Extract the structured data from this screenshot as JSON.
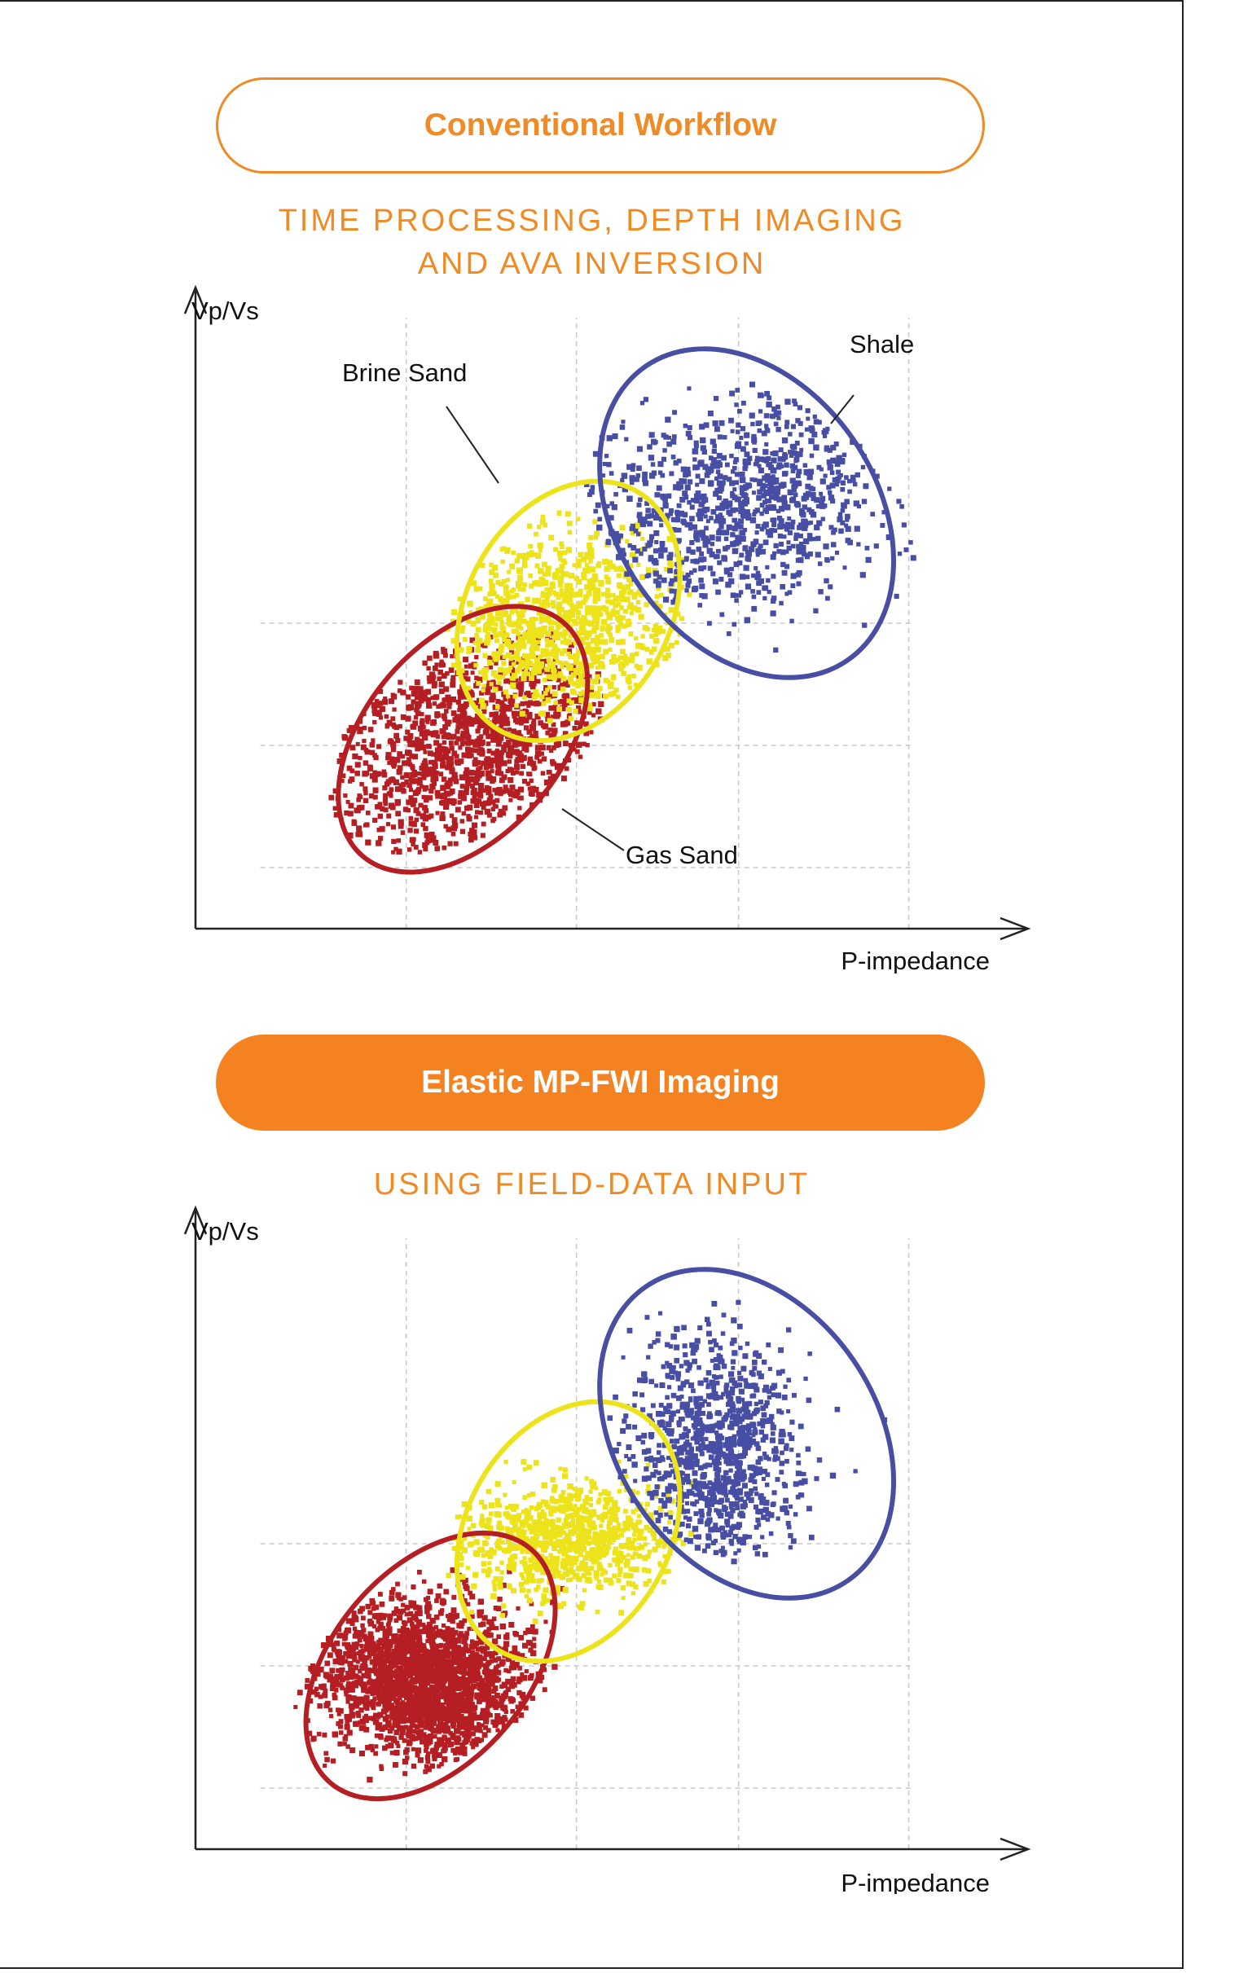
{
  "header1": {
    "pill_label": "Conventional Workflow",
    "subtitle_line1": "TIME PROCESSING, DEPTH IMAGING",
    "subtitle_line2": "AND AVA INVERSION"
  },
  "header2": {
    "pill_label": "Elastic MP-FWI Imaging",
    "subtitle": "USING FIELD-DATA INPUT"
  },
  "colors": {
    "accent": "#f58220",
    "gas": "#b51e23",
    "brine": "#ede31b",
    "shale": "#474ea3"
  },
  "chart_data": [
    {
      "type": "scatter",
      "title": "",
      "xlabel": "P-impedance",
      "ylabel": "Vp/Vs",
      "grid": true,
      "annotations": [
        "Brine Sand",
        "Shale",
        "Gas Sand"
      ],
      "series": [
        {
          "name": "Gas Sand",
          "color": "#b51e23",
          "count": 1500,
          "center": [
            0.33,
            0.31
          ],
          "spread": [
            0.105,
            0.078
          ],
          "angle": 0.9,
          "ellipse": {
            "center": [
              0.33,
              0.31
            ],
            "radii": [
              0.19,
              0.12
            ],
            "angle": 0.86
          }
        },
        {
          "name": "Brine Sand",
          "color": "#ede31b",
          "count": 1100,
          "center": [
            0.45,
            0.5
          ],
          "spread": [
            0.08,
            0.075
          ],
          "angle": 1.1,
          "ellipse": {
            "center": [
              0.46,
              0.52
            ],
            "radii": [
              0.17,
              0.125
            ],
            "angle": 1.05
          }
        },
        {
          "name": "Shale",
          "color": "#474ea3",
          "count": 1100,
          "center": [
            0.67,
            0.7
          ],
          "spread": [
            0.085,
            0.11
          ],
          "angle": -0.9,
          "ellipse": {
            "center": [
              0.68,
              0.68
            ],
            "radii": [
              0.22,
              0.16
            ],
            "angle": -0.97
          }
        }
      ]
    },
    {
      "type": "scatter",
      "title": "",
      "xlabel": "P-impedance",
      "ylabel": "Vp/Vs",
      "grid": true,
      "series": [
        {
          "name": "Gas Sand",
          "color": "#b51e23",
          "count": 2300,
          "center": [
            0.28,
            0.28
          ],
          "spread": [
            0.06,
            0.07
          ],
          "angle": 0.9,
          "ellipse": {
            "center": [
              0.29,
              0.3
            ],
            "radii": [
              0.19,
              0.12
            ],
            "angle": 0.86
          }
        },
        {
          "name": "Brine Sand",
          "color": "#ede31b",
          "count": 900,
          "center": [
            0.45,
            0.51
          ],
          "spread": [
            0.07,
            0.045
          ],
          "angle": 0.1,
          "ellipse": {
            "center": [
              0.46,
              0.52
            ],
            "radii": [
              0.17,
              0.125
            ],
            "angle": 1.05
          }
        },
        {
          "name": "Shale",
          "color": "#474ea3",
          "count": 1000,
          "center": [
            0.64,
            0.66
          ],
          "spread": [
            0.05,
            0.1
          ],
          "angle": 0.0,
          "ellipse": {
            "center": [
              0.68,
              0.68
            ],
            "radii": [
              0.22,
              0.16
            ],
            "angle": -0.97
          }
        }
      ]
    }
  ]
}
